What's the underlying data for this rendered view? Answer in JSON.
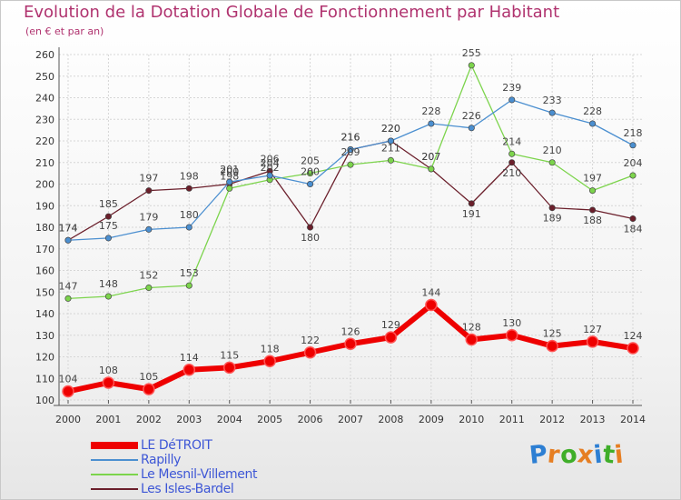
{
  "chart_data": {
    "type": "line",
    "title": "Evolution de la Dotation Globale de Fonctionnement par Habitant",
    "subtitle": "(en € et par an)",
    "x": [
      "2000",
      "2001",
      "2002",
      "2003",
      "2004",
      "2005",
      "2006",
      "2007",
      "2008",
      "2009",
      "2010",
      "2011",
      "2012",
      "2013",
      "2014"
    ],
    "ylim": [
      100,
      260
    ],
    "yticks": [
      100,
      110,
      120,
      130,
      140,
      150,
      160,
      170,
      180,
      190,
      200,
      210,
      220,
      230,
      240,
      250,
      260
    ],
    "grid": true,
    "legend_position": "bottom-left",
    "series": [
      {
        "name": "LE DéTROIT",
        "color": "#ee0000",
        "values": [
          104,
          108,
          105,
          114,
          115,
          118,
          122,
          126,
          129,
          144,
          128,
          130,
          125,
          127,
          124
        ]
      },
      {
        "name": "Rapilly",
        "color": "#4b8fd0",
        "values": [
          174,
          175,
          179,
          180,
          201,
          204,
          200,
          216,
          220,
          228,
          226,
          239,
          233,
          228,
          218
        ]
      },
      {
        "name": "Le Mesnil-Villement",
        "color": "#7cd44c",
        "values": [
          147,
          148,
          152,
          153,
          198,
          202,
          205,
          209,
          211,
          207,
          255,
          214,
          210,
          197,
          204
        ]
      },
      {
        "name": "Les Isles-Bardel",
        "color": "#6b1f2b",
        "values": [
          174,
          185,
          197,
          198,
          200,
          206,
          180,
          216,
          220,
          207,
          191,
          210,
          189,
          188,
          184
        ]
      }
    ]
  },
  "brand": {
    "letters": [
      "P",
      "r",
      "o",
      "x",
      "i",
      "t",
      "i"
    ],
    "colors": [
      "#2d7fd3",
      "#e67e22",
      "#3fae29",
      "#e67e22",
      "#2d7fd3",
      "#3fae29",
      "#e67e22"
    ]
  }
}
